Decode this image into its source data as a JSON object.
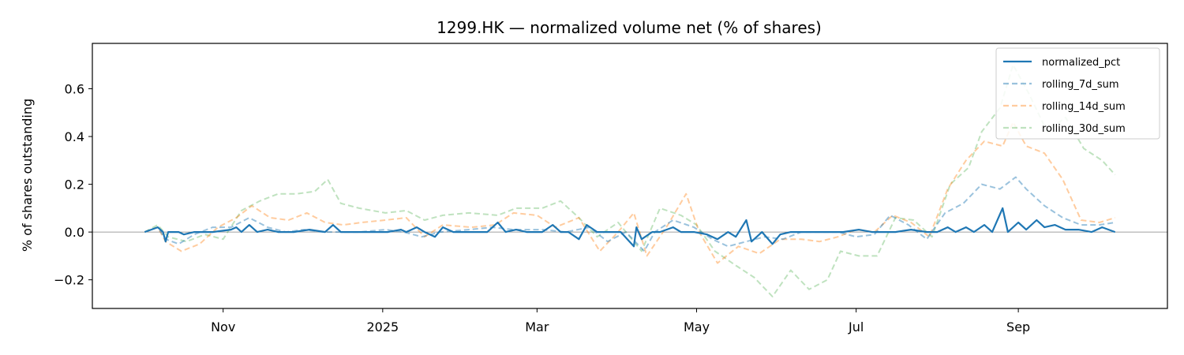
{
  "chart_data": {
    "type": "line",
    "title": "1299.HK — normalized volume net (% of shares)",
    "xlabel": "",
    "ylabel": "% of shares outstanding",
    "xlim": [
      "2024-09-12",
      "2025-10-28"
    ],
    "ylim": [
      -0.32,
      0.79
    ],
    "y_ticks": [
      -0.2,
      0.0,
      0.2,
      0.4,
      0.6
    ],
    "y_tick_labels": [
      "−0.2",
      "0.0",
      "0.2",
      "0.4",
      "0.6"
    ],
    "x_ticks": [
      "2024-11-01",
      "2025-01-01",
      "2025-03-01",
      "2025-05-01",
      "2025-07-01",
      "2025-09-01"
    ],
    "x_tick_labels": [
      "Nov",
      "2025",
      "Mar",
      "May",
      "Jul",
      "Sep"
    ],
    "zero_line": 0,
    "grid": false,
    "legend_position": "top-right",
    "series": [
      {
        "name": "normalized_pct",
        "color": "#1f77b4",
        "style": "solid",
        "opacity": 1.0,
        "points": [
          [
            "2024-10-02",
            0.0
          ],
          [
            "2024-10-07",
            0.02
          ],
          [
            "2024-10-09",
            0.0
          ],
          [
            "2024-10-10",
            -0.04
          ],
          [
            "2024-10-11",
            0.0
          ],
          [
            "2024-10-15",
            0.0
          ],
          [
            "2024-10-17",
            -0.01
          ],
          [
            "2024-10-21",
            0.0
          ],
          [
            "2024-10-28",
            0.0
          ],
          [
            "2024-11-04",
            0.01
          ],
          [
            "2024-11-06",
            0.02
          ],
          [
            "2024-11-08",
            0.0
          ],
          [
            "2024-11-11",
            0.03
          ],
          [
            "2024-11-14",
            0.0
          ],
          [
            "2024-11-18",
            0.01
          ],
          [
            "2024-11-22",
            0.0
          ],
          [
            "2024-11-28",
            0.0
          ],
          [
            "2024-12-04",
            0.01
          ],
          [
            "2024-12-10",
            0.0
          ],
          [
            "2024-12-13",
            0.03
          ],
          [
            "2024-12-16",
            0.0
          ],
          [
            "2024-12-20",
            0.0
          ],
          [
            "2024-12-27",
            0.0
          ],
          [
            "2025-01-03",
            0.0
          ],
          [
            "2025-01-08",
            0.01
          ],
          [
            "2025-01-10",
            0.0
          ],
          [
            "2025-01-14",
            0.02
          ],
          [
            "2025-01-17",
            0.0
          ],
          [
            "2025-01-21",
            -0.02
          ],
          [
            "2025-01-24",
            0.02
          ],
          [
            "2025-01-28",
            0.0
          ],
          [
            "2025-02-04",
            0.0
          ],
          [
            "2025-02-10",
            0.0
          ],
          [
            "2025-02-14",
            0.04
          ],
          [
            "2025-02-17",
            0.0
          ],
          [
            "2025-02-21",
            0.01
          ],
          [
            "2025-02-25",
            0.0
          ],
          [
            "2025-03-03",
            0.0
          ],
          [
            "2025-03-07",
            0.03
          ],
          [
            "2025-03-10",
            0.0
          ],
          [
            "2025-03-13",
            0.0
          ],
          [
            "2025-03-17",
            -0.03
          ],
          [
            "2025-03-20",
            0.03
          ],
          [
            "2025-03-24",
            0.0
          ],
          [
            "2025-03-28",
            0.0
          ],
          [
            "2025-04-02",
            0.0
          ],
          [
            "2025-04-07",
            -0.06
          ],
          [
            "2025-04-08",
            0.02
          ],
          [
            "2025-04-10",
            -0.03
          ],
          [
            "2025-04-14",
            0.0
          ],
          [
            "2025-04-17",
            0.0
          ],
          [
            "2025-04-22",
            0.02
          ],
          [
            "2025-04-25",
            0.0
          ],
          [
            "2025-04-30",
            0.0
          ],
          [
            "2025-05-05",
            -0.01
          ],
          [
            "2025-05-09",
            -0.03
          ],
          [
            "2025-05-13",
            0.0
          ],
          [
            "2025-05-16",
            -0.02
          ],
          [
            "2025-05-20",
            0.05
          ],
          [
            "2025-05-22",
            -0.04
          ],
          [
            "2025-05-26",
            0.0
          ],
          [
            "2025-05-30",
            -0.05
          ],
          [
            "2025-06-02",
            -0.01
          ],
          [
            "2025-06-06",
            0.0
          ],
          [
            "2025-06-10",
            0.0
          ],
          [
            "2025-06-16",
            0.0
          ],
          [
            "2025-06-20",
            0.0
          ],
          [
            "2025-06-26",
            0.0
          ],
          [
            "2025-07-02",
            0.01
          ],
          [
            "2025-07-07",
            0.0
          ],
          [
            "2025-07-11",
            0.0
          ],
          [
            "2025-07-16",
            0.0
          ],
          [
            "2025-07-22",
            0.01
          ],
          [
            "2025-07-28",
            0.0
          ],
          [
            "2025-08-01",
            0.0
          ],
          [
            "2025-08-05",
            0.02
          ],
          [
            "2025-08-08",
            0.0
          ],
          [
            "2025-08-12",
            0.02
          ],
          [
            "2025-08-15",
            0.0
          ],
          [
            "2025-08-19",
            0.03
          ],
          [
            "2025-08-22",
            0.0
          ],
          [
            "2025-08-26",
            0.1
          ],
          [
            "2025-08-28",
            0.0
          ],
          [
            "2025-09-01",
            0.04
          ],
          [
            "2025-09-04",
            0.01
          ],
          [
            "2025-09-08",
            0.05
          ],
          [
            "2025-09-11",
            0.02
          ],
          [
            "2025-09-15",
            0.03
          ],
          [
            "2025-09-19",
            0.01
          ],
          [
            "2025-09-24",
            0.01
          ],
          [
            "2025-09-29",
            0.0
          ],
          [
            "2025-10-03",
            0.02
          ],
          [
            "2025-10-08",
            0.0
          ]
        ]
      },
      {
        "name": "rolling_7d_sum",
        "color": "#1f77b4",
        "style": "dashed",
        "opacity": 0.45,
        "points": [
          [
            "2024-10-02",
            0.0
          ],
          [
            "2024-10-07",
            0.02
          ],
          [
            "2024-10-10",
            -0.03
          ],
          [
            "2024-10-15",
            -0.05
          ],
          [
            "2024-10-21",
            -0.01
          ],
          [
            "2024-10-28",
            0.02
          ],
          [
            "2024-11-04",
            0.02
          ],
          [
            "2024-11-11",
            0.06
          ],
          [
            "2024-11-18",
            0.02
          ],
          [
            "2024-11-25",
            0.0
          ],
          [
            "2024-12-02",
            0.01
          ],
          [
            "2024-12-09",
            0.0
          ],
          [
            "2024-12-16",
            0.0
          ],
          [
            "2024-12-23",
            0.0
          ],
          [
            "2025-01-02",
            0.01
          ],
          [
            "2025-01-09",
            0.0
          ],
          [
            "2025-01-16",
            -0.02
          ],
          [
            "2025-01-23",
            0.0
          ],
          [
            "2025-02-03",
            0.01
          ],
          [
            "2025-02-12",
            0.02
          ],
          [
            "2025-02-20",
            0.01
          ],
          [
            "2025-03-03",
            0.01
          ],
          [
            "2025-03-12",
            0.0
          ],
          [
            "2025-03-21",
            0.02
          ],
          [
            "2025-03-28",
            -0.04
          ],
          [
            "2025-04-04",
            0.0
          ],
          [
            "2025-04-11",
            -0.08
          ],
          [
            "2025-04-15",
            0.0
          ],
          [
            "2025-04-22",
            0.05
          ],
          [
            "2025-04-30",
            0.02
          ],
          [
            "2025-05-07",
            -0.03
          ],
          [
            "2025-05-13",
            -0.06
          ],
          [
            "2025-05-20",
            -0.04
          ],
          [
            "2025-05-27",
            -0.02
          ],
          [
            "2025-06-03",
            -0.03
          ],
          [
            "2025-06-10",
            0.0
          ],
          [
            "2025-06-17",
            0.0
          ],
          [
            "2025-06-24",
            0.0
          ],
          [
            "2025-07-01",
            -0.02
          ],
          [
            "2025-07-08",
            -0.01
          ],
          [
            "2025-07-14",
            0.07
          ],
          [
            "2025-07-21",
            0.03
          ],
          [
            "2025-07-28",
            -0.03
          ],
          [
            "2025-08-04",
            0.08
          ],
          [
            "2025-08-11",
            0.12
          ],
          [
            "2025-08-18",
            0.2
          ],
          [
            "2025-08-25",
            0.18
          ],
          [
            "2025-08-31",
            0.23
          ],
          [
            "2025-09-04",
            0.18
          ],
          [
            "2025-09-11",
            0.11
          ],
          [
            "2025-09-18",
            0.06
          ],
          [
            "2025-09-25",
            0.03
          ],
          [
            "2025-10-02",
            0.03
          ],
          [
            "2025-10-08",
            0.04
          ]
        ]
      },
      {
        "name": "rolling_14d_sum",
        "color": "#ff7f0e",
        "style": "dashed",
        "opacity": 0.4,
        "points": [
          [
            "2024-10-02",
            0.0
          ],
          [
            "2024-10-07",
            0.02
          ],
          [
            "2024-10-10",
            -0.04
          ],
          [
            "2024-10-16",
            -0.08
          ],
          [
            "2024-10-23",
            -0.05
          ],
          [
            "2024-10-30",
            0.02
          ],
          [
            "2024-11-06",
            0.06
          ],
          [
            "2024-11-12",
            0.11
          ],
          [
            "2024-11-19",
            0.06
          ],
          [
            "2024-11-26",
            0.05
          ],
          [
            "2024-12-03",
            0.08
          ],
          [
            "2024-12-10",
            0.04
          ],
          [
            "2024-12-17",
            0.03
          ],
          [
            "2024-12-24",
            0.04
          ],
          [
            "2025-01-02",
            0.05
          ],
          [
            "2025-01-10",
            0.06
          ],
          [
            "2025-01-17",
            -0.02
          ],
          [
            "2025-01-24",
            0.03
          ],
          [
            "2025-02-04",
            0.02
          ],
          [
            "2025-02-13",
            0.03
          ],
          [
            "2025-02-20",
            0.08
          ],
          [
            "2025-03-01",
            0.07
          ],
          [
            "2025-03-08",
            0.02
          ],
          [
            "2025-03-17",
            0.06
          ],
          [
            "2025-03-25",
            -0.08
          ],
          [
            "2025-04-01",
            0.0
          ],
          [
            "2025-04-07",
            0.08
          ],
          [
            "2025-04-12",
            -0.1
          ],
          [
            "2025-04-20",
            0.03
          ],
          [
            "2025-04-27",
            0.16
          ],
          [
            "2025-05-02",
            0.0
          ],
          [
            "2025-05-09",
            -0.13
          ],
          [
            "2025-05-17",
            -0.06
          ],
          [
            "2025-05-25",
            -0.09
          ],
          [
            "2025-06-02",
            -0.03
          ],
          [
            "2025-06-10",
            -0.03
          ],
          [
            "2025-06-17",
            -0.04
          ],
          [
            "2025-06-24",
            -0.02
          ],
          [
            "2025-07-01",
            0.01
          ],
          [
            "2025-07-08",
            0.0
          ],
          [
            "2025-07-15",
            0.07
          ],
          [
            "2025-07-22",
            0.04
          ],
          [
            "2025-07-29",
            -0.02
          ],
          [
            "2025-08-05",
            0.18
          ],
          [
            "2025-08-12",
            0.3
          ],
          [
            "2025-08-19",
            0.38
          ],
          [
            "2025-08-26",
            0.36
          ],
          [
            "2025-08-30",
            0.46
          ],
          [
            "2025-09-04",
            0.36
          ],
          [
            "2025-09-11",
            0.33
          ],
          [
            "2025-09-18",
            0.22
          ],
          [
            "2025-09-25",
            0.05
          ],
          [
            "2025-10-02",
            0.04
          ],
          [
            "2025-10-08",
            0.06
          ]
        ]
      },
      {
        "name": "rolling_30d_sum",
        "color": "#2ca02c",
        "style": "dashed",
        "opacity": 0.3,
        "points": [
          [
            "2024-10-02",
            0.0
          ],
          [
            "2024-10-07",
            0.03
          ],
          [
            "2024-10-11",
            -0.02
          ],
          [
            "2024-10-18",
            -0.04
          ],
          [
            "2024-10-25",
            -0.01
          ],
          [
            "2024-11-01",
            -0.03
          ],
          [
            "2024-11-08",
            0.09
          ],
          [
            "2024-11-15",
            0.13
          ],
          [
            "2024-11-22",
            0.16
          ],
          [
            "2024-11-29",
            0.16
          ],
          [
            "2024-12-06",
            0.17
          ],
          [
            "2024-12-11",
            0.22
          ],
          [
            "2024-12-16",
            0.12
          ],
          [
            "2024-12-23",
            0.1
          ],
          [
            "2025-01-02",
            0.08
          ],
          [
            "2025-01-10",
            0.09
          ],
          [
            "2025-01-17",
            0.05
          ],
          [
            "2025-01-24",
            0.07
          ],
          [
            "2025-02-03",
            0.08
          ],
          [
            "2025-02-14",
            0.07
          ],
          [
            "2025-02-21",
            0.1
          ],
          [
            "2025-03-03",
            0.1
          ],
          [
            "2025-03-10",
            0.13
          ],
          [
            "2025-03-17",
            0.06
          ],
          [
            "2025-03-24",
            -0.02
          ],
          [
            "2025-04-01",
            0.04
          ],
          [
            "2025-04-10",
            -0.08
          ],
          [
            "2025-04-17",
            0.1
          ],
          [
            "2025-04-25",
            0.07
          ],
          [
            "2025-05-01",
            0.03
          ],
          [
            "2025-05-08",
            -0.08
          ],
          [
            "2025-05-16",
            -0.14
          ],
          [
            "2025-05-23",
            -0.19
          ],
          [
            "2025-05-30",
            -0.27
          ],
          [
            "2025-06-06",
            -0.16
          ],
          [
            "2025-06-13",
            -0.24
          ],
          [
            "2025-06-20",
            -0.2
          ],
          [
            "2025-06-25",
            -0.08
          ],
          [
            "2025-07-02",
            -0.1
          ],
          [
            "2025-07-09",
            -0.1
          ],
          [
            "2025-07-16",
            0.06
          ],
          [
            "2025-07-23",
            0.05
          ],
          [
            "2025-07-30",
            -0.02
          ],
          [
            "2025-08-06",
            0.2
          ],
          [
            "2025-08-13",
            0.27
          ],
          [
            "2025-08-18",
            0.42
          ],
          [
            "2025-08-25",
            0.52
          ],
          [
            "2025-08-30",
            0.7
          ],
          [
            "2025-09-05",
            0.58
          ],
          [
            "2025-09-12",
            0.42
          ],
          [
            "2025-09-19",
            0.48
          ],
          [
            "2025-09-26",
            0.35
          ],
          [
            "2025-10-03",
            0.3
          ],
          [
            "2025-10-08",
            0.24
          ]
        ]
      }
    ]
  }
}
